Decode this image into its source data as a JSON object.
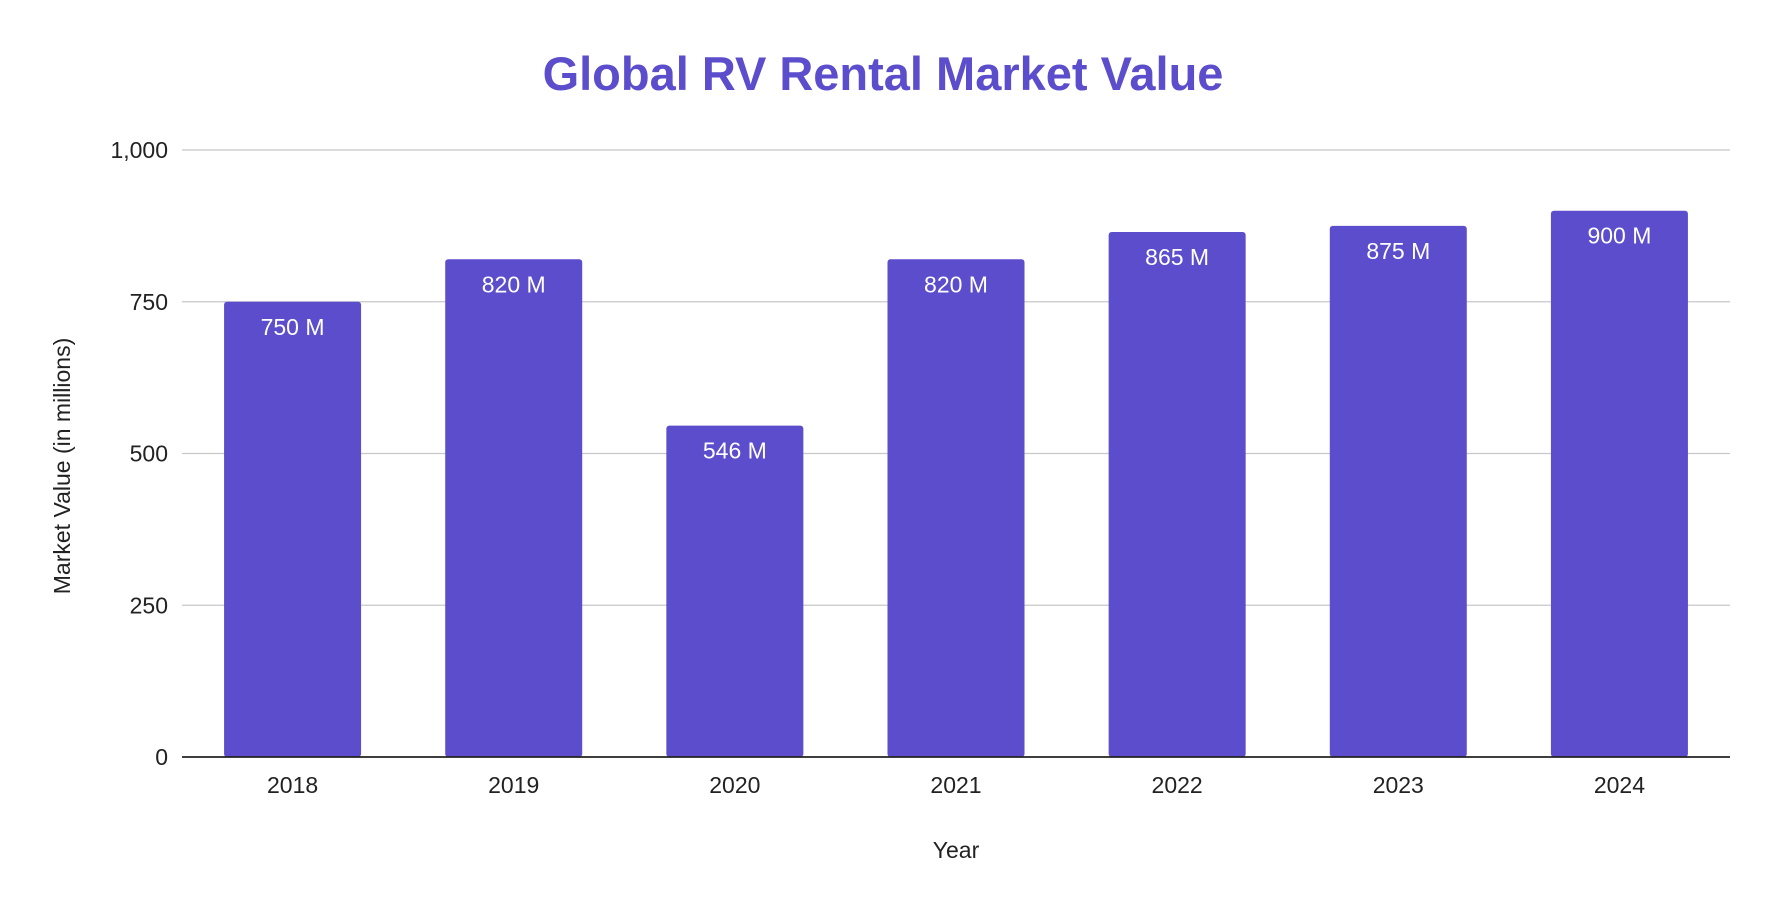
{
  "chart_data": {
    "type": "bar",
    "title": "Global RV Rental Market Value",
    "xlabel": "Year",
    "ylabel": "Market Value (in millions)",
    "categories": [
      "2018",
      "2019",
      "2020",
      "2021",
      "2022",
      "2023",
      "2024"
    ],
    "values": [
      750,
      820,
      546,
      820,
      865,
      875,
      900
    ],
    "data_labels": [
      "750 M",
      "820 M",
      "546 M",
      "820 M",
      "865 M",
      "875 M",
      "900 M"
    ],
    "ylim": [
      0,
      1000
    ],
    "yticks": [
      0,
      250,
      500,
      750,
      1000
    ],
    "ytick_labels": [
      "0",
      "250",
      "500",
      "750",
      "1,000"
    ],
    "grid": true,
    "legend": "none",
    "colors": {
      "bar": "#5b4dcb",
      "title": "#5b4dcb",
      "grid": "#c8c8c8",
      "axis": "#222222"
    }
  }
}
